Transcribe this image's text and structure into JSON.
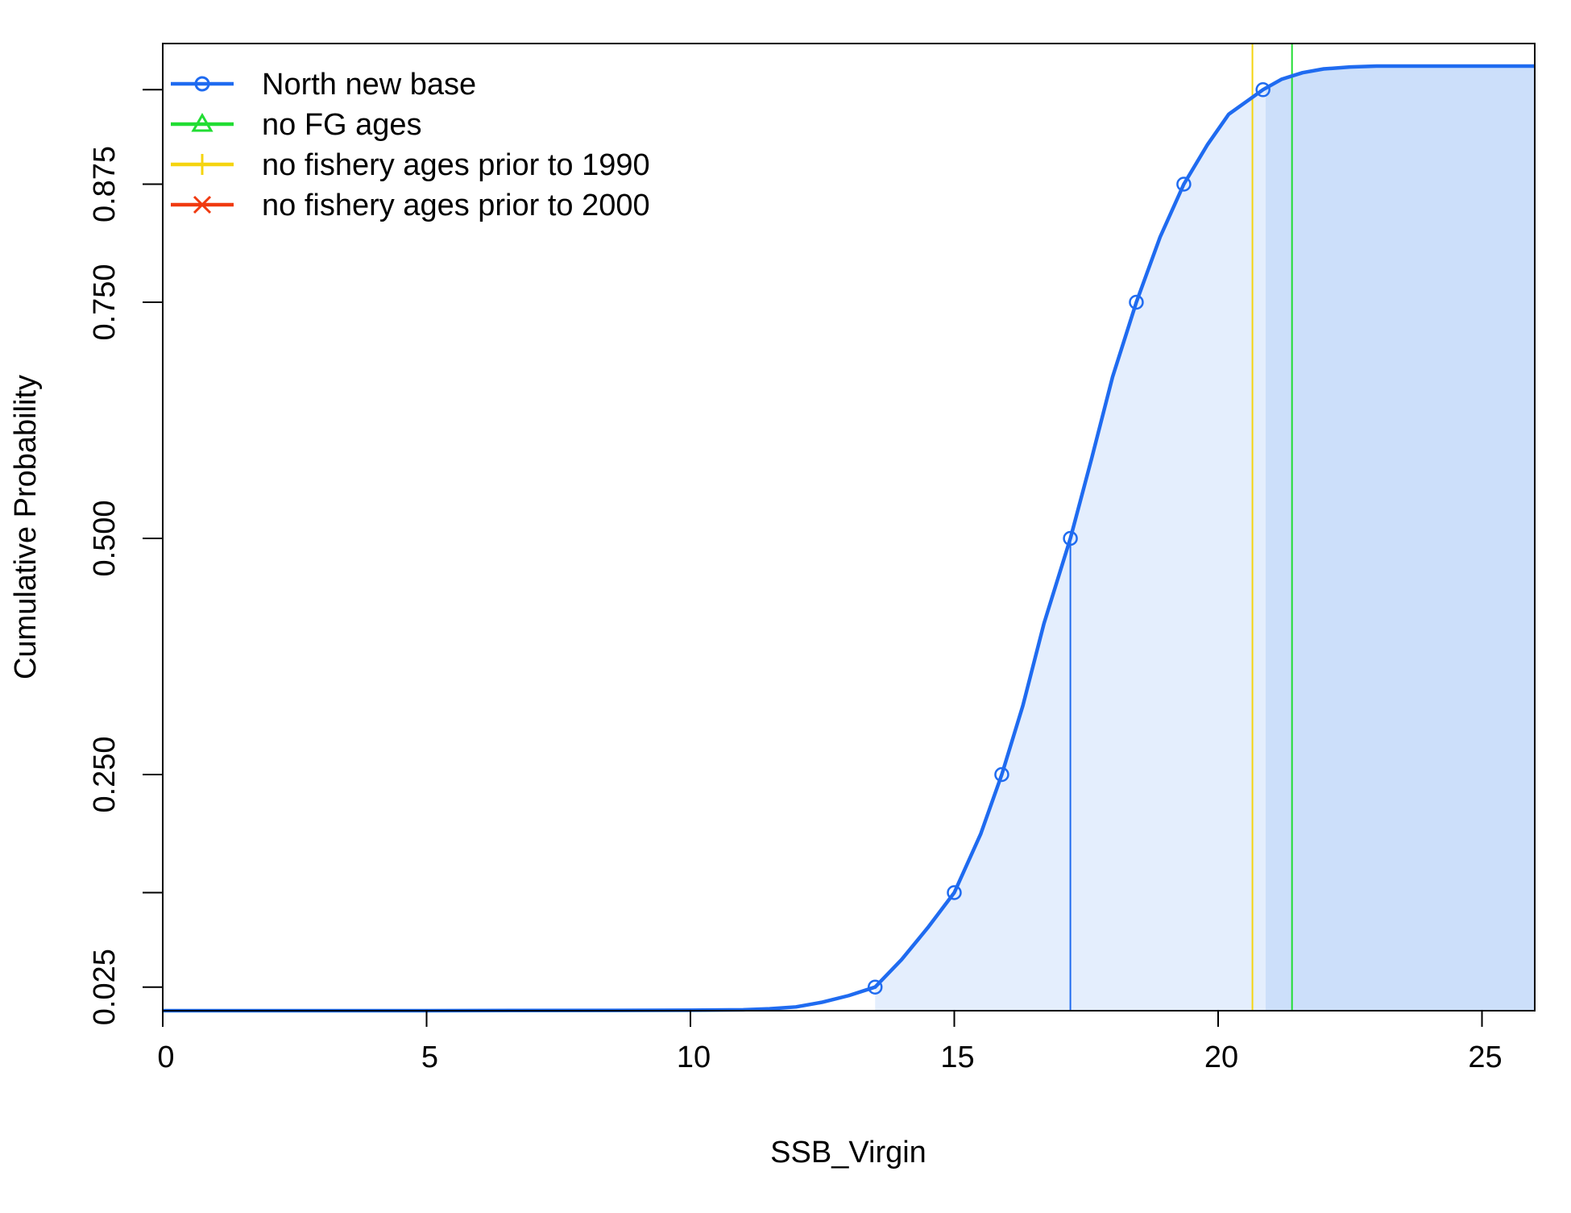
{
  "chart_data": {
    "type": "line",
    "title": "",
    "xlabel": "SSB_Virgin",
    "ylabel": "Cumulative Probability",
    "xlim": [
      0,
      26
    ],
    "ylim": [
      0,
      1
    ],
    "x_ticks": [
      {
        "value": 0,
        "label": "0"
      },
      {
        "value": 5,
        "label": "5"
      },
      {
        "value": 10,
        "label": "10"
      },
      {
        "value": 15,
        "label": "15"
      },
      {
        "value": 20,
        "label": "20"
      },
      {
        "value": 25,
        "label": "25"
      }
    ],
    "y_ticks": [
      {
        "value": 0.025,
        "label": "0.025"
      },
      {
        "value": 0.125,
        "label": ""
      },
      {
        "value": 0.25,
        "label": "0.250"
      },
      {
        "value": 0.5,
        "label": "0.500"
      },
      {
        "value": 0.75,
        "label": "0.750"
      },
      {
        "value": 0.875,
        "label": "0.875"
      },
      {
        "value": 0.975,
        "label": ""
      }
    ],
    "grid": false,
    "legend_position": "top-left",
    "legend": [
      {
        "label": "North new base",
        "color": "#1F6BF0",
        "marker": "circle"
      },
      {
        "label": "no FG ages",
        "color": "#22DD33",
        "marker": "triangle"
      },
      {
        "label": "no fishery ages prior to 1990",
        "color": "#F5D40F",
        "marker": "plus"
      },
      {
        "label": "no fishery ages prior to 2000",
        "color": "#F03A10",
        "marker": "cross"
      }
    ],
    "series": [
      {
        "name": "North new base",
        "color": "#1F6BF0",
        "fill_color": "#E4EEFD",
        "upper_fill_color": "#CCDFFA",
        "x": [
          0,
          5,
          10,
          11,
          11.5,
          12,
          12.5,
          13,
          13.5,
          14,
          14.5,
          15,
          15.5,
          15.9,
          16.3,
          16.7,
          17.2,
          17.6,
          18.0,
          18.45,
          18.9,
          19.35,
          19.8,
          20.2,
          20.6,
          20.85,
          21.2,
          21.6,
          22.0,
          22.5,
          23.0,
          26
        ],
        "y": [
          0.0,
          0.0,
          0.0005,
          0.001,
          0.002,
          0.004,
          0.009,
          0.016,
          0.025,
          0.054,
          0.088,
          0.125,
          0.187,
          0.25,
          0.323,
          0.41,
          0.5,
          0.584,
          0.671,
          0.75,
          0.819,
          0.875,
          0.917,
          0.949,
          0.965,
          0.975,
          0.986,
          0.993,
          0.997,
          0.999,
          1.0,
          1.0
        ],
        "markers": [
          {
            "x": 13.5,
            "y": 0.025
          },
          {
            "x": 15.0,
            "y": 0.125
          },
          {
            "x": 15.9,
            "y": 0.25
          },
          {
            "x": 17.2,
            "y": 0.5
          },
          {
            "x": 18.45,
            "y": 0.75
          },
          {
            "x": 19.35,
            "y": 0.875
          },
          {
            "x": 20.85,
            "y": 0.975
          }
        ],
        "median_x": 17.2,
        "lower_bound_x": 13.5,
        "upper_bound_x": 20.9
      }
    ],
    "reference_lines": [
      {
        "series": "no fishery ages prior to 1990",
        "x": 20.65,
        "color": "#F5D40F"
      },
      {
        "series": "no FG ages",
        "x": 21.4,
        "color": "#22DD33"
      }
    ]
  }
}
